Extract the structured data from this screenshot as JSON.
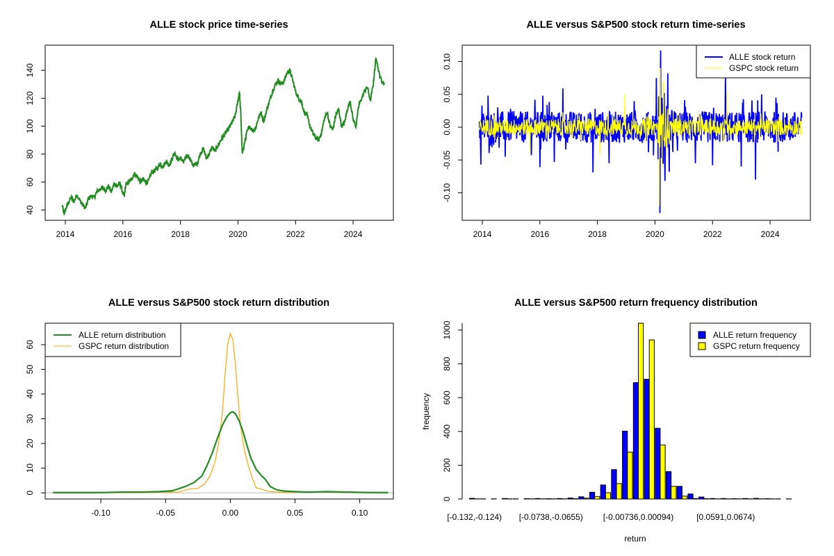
{
  "chart_data": [
    {
      "type": "line",
      "title": "ALLE stock price time-series",
      "xlabel": "",
      "ylabel": "",
      "xlim": [
        2013.3,
        2025.4
      ],
      "ylim": [
        32.6,
        158
      ],
      "xticks": [
        2014,
        2016,
        2018,
        2020,
        2022,
        2024
      ],
      "xtick_labels": [
        "2014",
        "2016",
        "2018",
        "2020",
        "2022",
        "2024"
      ],
      "yticks": [
        40,
        60,
        80,
        100,
        120,
        140
      ],
      "ytick_labels": [
        "40",
        "60",
        "80",
        "100",
        "120",
        "140"
      ],
      "color": "#228B22",
      "series": [
        {
          "name": "ALLE price",
          "x": [
            2013.9,
            2013.95,
            2014.0,
            2014.1,
            2014.2,
            2014.3,
            2014.4,
            2014.5,
            2014.6,
            2014.7,
            2014.8,
            2014.9,
            2015.0,
            2015.1,
            2015.2,
            2015.3,
            2015.4,
            2015.5,
            2015.6,
            2015.7,
            2015.8,
            2015.9,
            2016.0,
            2016.05,
            2016.1,
            2016.2,
            2016.3,
            2016.4,
            2016.5,
            2016.6,
            2016.7,
            2016.8,
            2016.9,
            2017.0,
            2017.1,
            2017.2,
            2017.3,
            2017.4,
            2017.5,
            2017.6,
            2017.7,
            2017.8,
            2017.9,
            2018.0,
            2018.1,
            2018.2,
            2018.3,
            2018.4,
            2018.5,
            2018.6,
            2018.7,
            2018.8,
            2018.9,
            2019.0,
            2019.1,
            2019.2,
            2019.3,
            2019.4,
            2019.5,
            2019.6,
            2019.7,
            2019.8,
            2019.9,
            2020.0,
            2020.05,
            2020.1,
            2020.15,
            2020.2,
            2020.25,
            2020.3,
            2020.4,
            2020.5,
            2020.6,
            2020.7,
            2020.8,
            2020.9,
            2021.0,
            2021.1,
            2021.2,
            2021.3,
            2021.4,
            2021.5,
            2021.6,
            2021.7,
            2021.8,
            2021.9,
            2022.0,
            2022.1,
            2022.2,
            2022.3,
            2022.4,
            2022.5,
            2022.6,
            2022.7,
            2022.8,
            2022.9,
            2023.0,
            2023.1,
            2023.2,
            2023.3,
            2023.4,
            2023.5,
            2023.6,
            2023.7,
            2023.8,
            2023.9,
            2024.0,
            2024.1,
            2024.2,
            2024.3,
            2024.4,
            2024.5,
            2024.6,
            2024.7,
            2024.75,
            2024.8,
            2024.9,
            2025.0,
            2025.1
          ],
          "y": [
            43,
            37,
            40,
            45,
            49,
            46,
            51,
            47,
            44,
            41,
            48,
            50,
            49,
            53,
            55,
            56,
            54,
            57,
            53,
            59,
            57,
            59,
            52,
            50,
            58,
            60,
            62,
            66,
            64,
            60,
            62,
            60,
            61,
            67,
            68,
            70,
            73,
            71,
            75,
            72,
            76,
            81,
            76,
            77,
            74,
            79,
            78,
            73,
            72,
            74,
            81,
            84,
            77,
            80,
            85,
            82,
            86,
            90,
            93,
            96,
            99,
            103,
            107,
            118,
            125,
            108,
            80,
            85,
            90,
            95,
            100,
            97,
            98,
            105,
            110,
            103,
            112,
            118,
            125,
            130,
            133,
            130,
            132,
            138,
            140,
            133,
            125,
            120,
            118,
            110,
            108,
            100,
            95,
            92,
            90,
            95,
            105,
            110,
            100,
            98,
            108,
            112,
            100,
            102,
            112,
            118,
            105,
            100,
            115,
            120,
            125,
            128,
            118,
            130,
            140,
            150,
            138,
            132,
            130
          ]
        }
      ]
    },
    {
      "type": "line",
      "title": "ALLE versus S&P500 stock return time-series",
      "xlabel": "",
      "ylabel": "",
      "xlim": [
        2013.3,
        2025.4
      ],
      "ylim": [
        -0.142,
        0.125
      ],
      "xticks": [
        2014,
        2016,
        2018,
        2020,
        2022,
        2024
      ],
      "xtick_labels": [
        "2014",
        "2016",
        "2018",
        "2020",
        "2022",
        "2024"
      ],
      "yticks": [
        -0.1,
        -0.05,
        0.0,
        0.05,
        0.1
      ],
      "ytick_labels": [
        "-0.10",
        "-0.05",
        "0.00",
        "0.05",
        "0.10"
      ],
      "legend": {
        "position": "top-right",
        "entries": [
          {
            "label": "ALLE stock return",
            "color": "#0000FF"
          },
          {
            "label": "GSPC stock return",
            "color": "#FFFF00"
          }
        ]
      },
      "series": [
        {
          "name": "ALLE stock return",
          "color": "#0000FF",
          "volatility": 0.015,
          "x_range": [
            2013.9,
            2025.1
          ],
          "extremes": [
            {
              "x": 2013.95,
              "y": -0.057
            },
            {
              "x": 2014.2,
              "y": 0.048
            },
            {
              "x": 2014.8,
              "y": -0.045
            },
            {
              "x": 2016.0,
              "y": -0.061
            },
            {
              "x": 2016.1,
              "y": 0.048
            },
            {
              "x": 2016.5,
              "y": -0.053
            },
            {
              "x": 2016.8,
              "y": 0.059
            },
            {
              "x": 2017.85,
              "y": -0.069
            },
            {
              "x": 2018.4,
              "y": -0.055
            },
            {
              "x": 2020.05,
              "y": 0.075
            },
            {
              "x": 2020.17,
              "y": -0.131
            },
            {
              "x": 2020.2,
              "y": 0.117
            },
            {
              "x": 2020.35,
              "y": -0.082
            },
            {
              "x": 2020.45,
              "y": 0.082
            },
            {
              "x": 2020.5,
              "y": -0.068
            },
            {
              "x": 2021.4,
              "y": -0.055
            },
            {
              "x": 2022.0,
              "y": -0.058
            },
            {
              "x": 2022.45,
              "y": 0.08
            },
            {
              "x": 2023.0,
              "y": -0.06
            },
            {
              "x": 2023.5,
              "y": -0.08
            },
            {
              "x": 2023.7,
              "y": 0.05
            },
            {
              "x": 2024.2,
              "y": 0.045
            }
          ]
        },
        {
          "name": "GSPC stock return",
          "color": "#FFFF00",
          "volatility": 0.008,
          "x_range": [
            2013.9,
            2025.1
          ],
          "extremes": [
            {
              "x": 2015.65,
              "y": -0.04
            },
            {
              "x": 2018.1,
              "y": -0.041
            },
            {
              "x": 2018.95,
              "y": 0.05
            },
            {
              "x": 2020.15,
              "y": -0.12
            },
            {
              "x": 2020.19,
              "y": 0.09
            },
            {
              "x": 2020.25,
              "y": -0.06
            },
            {
              "x": 2020.3,
              "y": 0.07
            },
            {
              "x": 2022.5,
              "y": 0.055
            }
          ]
        }
      ]
    },
    {
      "type": "line",
      "title": "ALLE versus S&P500 stock return distribution",
      "xlabel": "",
      "ylabel": "",
      "xlim": [
        -0.143,
        0.126
      ],
      "ylim": [
        -2.5,
        68.7
      ],
      "xticks": [
        -0.1,
        -0.05,
        0.0,
        0.05,
        0.1
      ],
      "xtick_labels": [
        "-0.10",
        "-0.05",
        "0.00",
        "0.05",
        "0.10"
      ],
      "yticks": [
        0,
        10,
        20,
        30,
        40,
        50,
        60
      ],
      "ytick_labels": [
        "0",
        "10",
        "20",
        "30",
        "40",
        "50",
        "60"
      ],
      "zero_line_color": "#BEBEBE",
      "legend": {
        "position": "top-left",
        "entries": [
          {
            "label": "ALLE return distribution",
            "color": "#228B22"
          },
          {
            "label": "GSPC return distribution",
            "color": "#FFA500"
          }
        ]
      },
      "series": [
        {
          "name": "ALLE return distribution",
          "color": "#228B22",
          "x": [
            -0.137,
            -0.12,
            -0.1,
            -0.085,
            -0.07,
            -0.055,
            -0.045,
            -0.035,
            -0.028,
            -0.022,
            -0.018,
            -0.014,
            -0.01,
            -0.006,
            -0.003,
            0.0,
            0.002,
            0.004,
            0.007,
            0.01,
            0.013,
            0.016,
            0.02,
            0.024,
            0.027,
            0.031,
            0.036,
            0.042,
            0.05,
            0.06,
            0.075,
            0.09,
            0.11,
            0.122
          ],
          "y": [
            0.1,
            0.1,
            0.1,
            0.3,
            0.3,
            0.5,
            0.8,
            2.5,
            4.2,
            6.8,
            11,
            16,
            22,
            27.5,
            30.5,
            32.5,
            32.8,
            32,
            29,
            24.5,
            19,
            14,
            9.5,
            7,
            5.5,
            2.5,
            1.2,
            0.7,
            0.5,
            0.3,
            0.5,
            0.3,
            0.1,
            0.1
          ]
        },
        {
          "name": "GSPC return distribution",
          "color": "#FFA500",
          "x": [
            -0.128,
            -0.11,
            -0.09,
            -0.07,
            -0.05,
            -0.04,
            -0.032,
            -0.025,
            -0.02,
            -0.016,
            -0.012,
            -0.009,
            -0.006,
            -0.004,
            -0.002,
            0.0,
            0.002,
            0.004,
            0.006,
            0.008,
            0.011,
            0.014,
            0.017,
            0.02,
            0.024,
            0.03,
            0.04,
            0.06,
            0.08,
            0.09
          ],
          "y": [
            0.1,
            0.1,
            0.1,
            0.1,
            0.3,
            0.3,
            1.5,
            1.8,
            3.5,
            6.5,
            12,
            20,
            33,
            48,
            60,
            64.5,
            62,
            52,
            38,
            27,
            17,
            11,
            6,
            2,
            1.5,
            0.5,
            0.2,
            0.3,
            0.3,
            0.1
          ]
        }
      ]
    },
    {
      "type": "bar",
      "title": "ALLE versus S&P500 return frequency distribution",
      "xlabel": "return",
      "ylabel": "frequency",
      "ylim": [
        0,
        1041
      ],
      "yticks": [
        0,
        200,
        400,
        600,
        800,
        1000
      ],
      "ytick_labels": [
        "0",
        "200",
        "400",
        "600",
        "800",
        "1000"
      ],
      "category_labels": [
        {
          "index": 0,
          "label": "[-0.132,-0.124)"
        },
        {
          "index": 7,
          "label": "[-0.0738,-0.0655)"
        },
        {
          "index": 15,
          "label": "[-0.00736,0.00094)"
        },
        {
          "index": 23,
          "label": "[0.0591,0.0674)"
        }
      ],
      "legend": {
        "position": "top-right",
        "entries": [
          {
            "label": "ALLE return frequency",
            "color": "#0000FF"
          },
          {
            "label": "GSPC return frequency",
            "color": "#FFFF00"
          }
        ]
      },
      "series": [
        {
          "name": "ALLE return frequency",
          "color": "#0000FF",
          "values": [
            4,
            1,
            1,
            3,
            1,
            2,
            3,
            2,
            3,
            6,
            13,
            40,
            83,
            174,
            402,
            689,
            709,
            419,
            162,
            75,
            30,
            12,
            3,
            3,
            2,
            3,
            4,
            2,
            1,
            1
          ]
        },
        {
          "name": "GSPC return frequency",
          "color": "#FFFF00",
          "values": [
            1,
            0,
            0,
            1,
            0,
            1,
            1,
            1,
            1,
            2,
            5,
            15,
            37,
            91,
            278,
            1045,
            942,
            320,
            75,
            17,
            3,
            2,
            1,
            1,
            1,
            1,
            1,
            1,
            0,
            0
          ]
        }
      ]
    }
  ]
}
